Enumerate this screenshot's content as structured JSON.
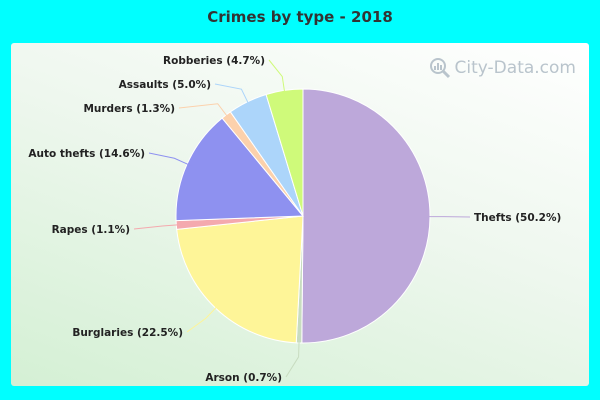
{
  "header": {
    "title": "Crimes by type - 2018"
  },
  "watermark": {
    "text": "City-Data.com",
    "icon": "magnifier-chart-icon"
  },
  "colors": {
    "background": "#00ffff",
    "title": "#333333"
  },
  "chart_data": {
    "type": "pie",
    "title": "Crimes by type - 2018",
    "legend": "none",
    "slices": [
      {
        "label": "Thefts (50.2%)",
        "value": 50.2,
        "color": "#bda8da"
      },
      {
        "label": "Arson (0.7%)",
        "value": 0.7,
        "color": "#c8dcc0"
      },
      {
        "label": "Burglaries (22.5%)",
        "value": 22.5,
        "color": "#fef598"
      },
      {
        "label": "Rapes (1.1%)",
        "value": 1.1,
        "color": "#f4a9ae"
      },
      {
        "label": "Auto thefts (14.6%)",
        "value": 14.6,
        "color": "#8e91f0"
      },
      {
        "label": "Murders (1.3%)",
        "value": 1.3,
        "color": "#fcd1ac"
      },
      {
        "label": "Assaults (5.0%)",
        "value": 5.0,
        "color": "#acd5fa"
      },
      {
        "label": "Robberies (4.7%)",
        "value": 4.7,
        "color": "#cffa7a"
      }
    ]
  }
}
